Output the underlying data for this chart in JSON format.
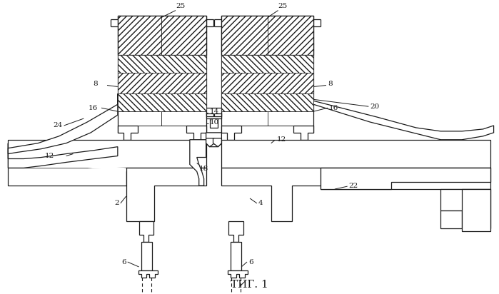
{
  "title": "ΤИГ. 1",
  "bg": "#ffffff",
  "lc": "#1a1a1a",
  "fs": 7.5,
  "fig_w": 6.99,
  "fig_h": 4.12,
  "dpi": 100
}
